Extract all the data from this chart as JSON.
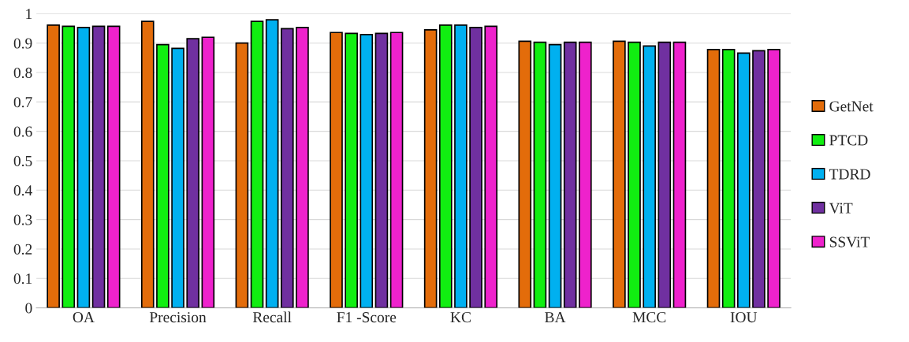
{
  "chart_data": {
    "type": "bar",
    "categories": [
      "OA",
      "Precision",
      "Recall",
      "F1 -Score",
      "KC",
      "BA",
      "MCC",
      "IOU"
    ],
    "series": [
      {
        "name": "GetNet",
        "color": "#e36c0a",
        "values": [
          0.961,
          0.974,
          0.9,
          0.936,
          0.945,
          0.906,
          0.906,
          0.878
        ]
      },
      {
        "name": "PTCD",
        "color": "#11ee11",
        "values": [
          0.957,
          0.895,
          0.974,
          0.933,
          0.961,
          0.903,
          0.903,
          0.878
        ]
      },
      {
        "name": "TDRD",
        "color": "#00b0f0",
        "values": [
          0.953,
          0.882,
          0.979,
          0.929,
          0.961,
          0.895,
          0.89,
          0.866
        ]
      },
      {
        "name": "ViT",
        "color": "#7030a0",
        "values": [
          0.957,
          0.915,
          0.949,
          0.933,
          0.953,
          0.903,
          0.903,
          0.874
        ]
      },
      {
        "name": "SSViT",
        "color": "#ee22cc",
        "values": [
          0.957,
          0.92,
          0.953,
          0.936,
          0.957,
          0.903,
          0.903,
          0.878
        ]
      }
    ],
    "ylim": [
      0,
      1
    ],
    "yticks": [
      0,
      0.1,
      0.2,
      0.3,
      0.4,
      0.5,
      0.6,
      0.7,
      0.8,
      0.9,
      1
    ],
    "grid": "y",
    "legend": "right"
  }
}
